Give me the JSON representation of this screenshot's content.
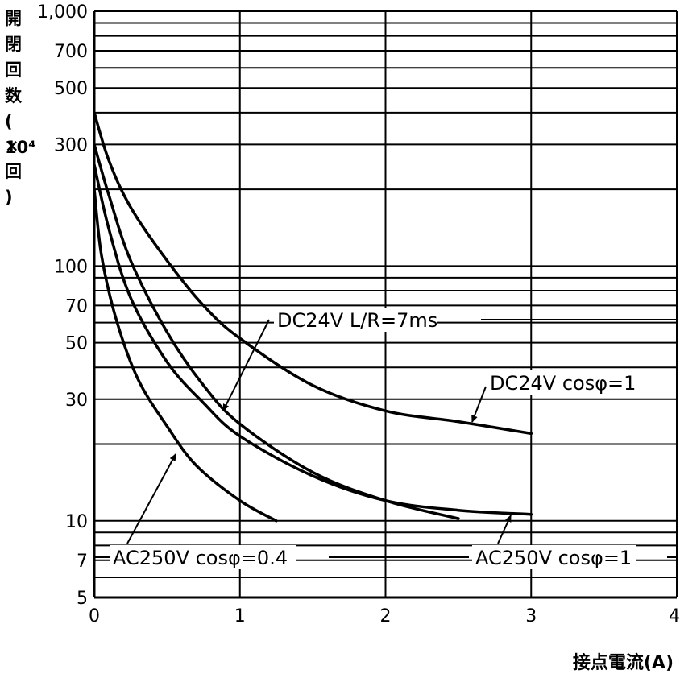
{
  "chart_data": {
    "type": "line",
    "y_scale": "log",
    "xlim": [
      0,
      4
    ],
    "ylim": [
      5,
      1000
    ],
    "x_ticks": [
      "0",
      "1",
      "2",
      "3",
      "4"
    ],
    "y_ticks": [
      {
        "value": 1000,
        "label": "1,000"
      },
      {
        "value": 700,
        "label": "700"
      },
      {
        "value": 500,
        "label": "500"
      },
      {
        "value": 300,
        "label": "300"
      },
      {
        "value": 100,
        "label": "100"
      },
      {
        "value": 70,
        "label": "70"
      },
      {
        "value": 50,
        "label": "50"
      },
      {
        "value": 30,
        "label": "30"
      },
      {
        "value": 10,
        "label": "10"
      },
      {
        "value": 7,
        "label": "7"
      },
      {
        "value": 5,
        "label": "5"
      }
    ],
    "ylabel_lines": [
      "開",
      "閉",
      "回",
      "数",
      "(",
      "×",
      "10⁴",
      "回",
      ")"
    ],
    "xlabel": "接点電流(A)",
    "grid": true,
    "gridlines_y": [
      5,
      6,
      7,
      8,
      9,
      10,
      20,
      30,
      40,
      50,
      60,
      70,
      80,
      90,
      100,
      200,
      300,
      400,
      500,
      600,
      700,
      800,
      900,
      1000
    ],
    "gridlines_x": [
      0,
      1,
      2,
      3,
      4
    ],
    "series": [
      {
        "name": "DC24V cosφ=1",
        "x": [
          0,
          0.1,
          0.25,
          0.5,
          0.75,
          1.0,
          1.5,
          2.0,
          2.5,
          3.0
        ],
        "y": [
          400,
          260,
          170,
          105,
          70,
          52,
          34,
          27,
          24.5,
          22
        ]
      },
      {
        "name": "DC24V L/R=7ms",
        "x": [
          0,
          0.1,
          0.25,
          0.5,
          0.75,
          1.0,
          1.5,
          2.0,
          2.5
        ],
        "y": [
          300,
          190,
          105,
          55,
          34,
          24,
          15.5,
          12,
          10.2
        ]
      },
      {
        "name": "AC250V cosφ=1",
        "x": [
          0,
          0.1,
          0.25,
          0.5,
          0.75,
          1.0,
          1.5,
          2.0,
          2.5,
          3.0
        ],
        "y": [
          250,
          140,
          75,
          42,
          29,
          21.5,
          15,
          12,
          11,
          10.6
        ]
      },
      {
        "name": "AC250V cosφ=0.4",
        "x": [
          0,
          0.05,
          0.15,
          0.3,
          0.5,
          0.7,
          1.0,
          1.25
        ],
        "y": [
          200,
          110,
          62,
          36,
          23.5,
          16.5,
          12,
          10
        ]
      }
    ],
    "annotations": [
      {
        "text": "DC24V  L/R=7ms",
        "series": "DC24V L/R=7ms"
      },
      {
        "text": "DC24V  cosφ=1",
        "series": "DC24V cosφ=1"
      },
      {
        "text": "AC250V  cosφ=0.4",
        "series": "AC250V cosφ=0.4"
      },
      {
        "text": "AC250V  cosφ=1",
        "series": "AC250V cosφ=1"
      }
    ],
    "line_color": "#000000",
    "background": "#ffffff"
  }
}
